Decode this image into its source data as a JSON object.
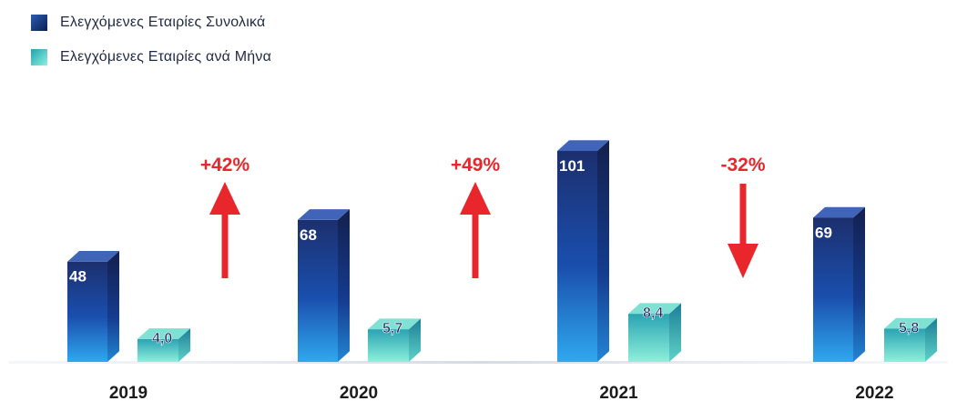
{
  "chart_data": {
    "type": "bar",
    "categories": [
      "2019",
      "2020",
      "2021",
      "2022"
    ],
    "series": [
      {
        "name": "Ελεγχόμενες Εταιρίες Συνολικά",
        "values": [
          48,
          68,
          101,
          69
        ],
        "labels": [
          "48",
          "68",
          "101",
          "69"
        ],
        "color": "#1a3a8a"
      },
      {
        "name": "Ελεγχόμενες Εταιρίες ανά Μήνα",
        "values": [
          4.0,
          5.7,
          8.4,
          5.8
        ],
        "labels": [
          "4,0",
          "5,7",
          "8,4",
          "5,8"
        ],
        "color": "#3cc6c0"
      }
    ],
    "annotations": [
      {
        "text": "+42%",
        "direction": "up"
      },
      {
        "text": "+49%",
        "direction": "up"
      },
      {
        "text": "-32%",
        "direction": "down"
      }
    ],
    "annotation_color": "#e8262b"
  },
  "legend": [
    {
      "label": "Ελεγχόμενες Εταιρίες Συνολικά",
      "color_top": "#1e4a9a",
      "color_bottom": "#0c1f52"
    },
    {
      "label": "Ελεγχόμενες Εταιρίες ανά Μήνα",
      "color_top": "#2bb0b8",
      "color_bottom": "#7fe3d8"
    }
  ]
}
